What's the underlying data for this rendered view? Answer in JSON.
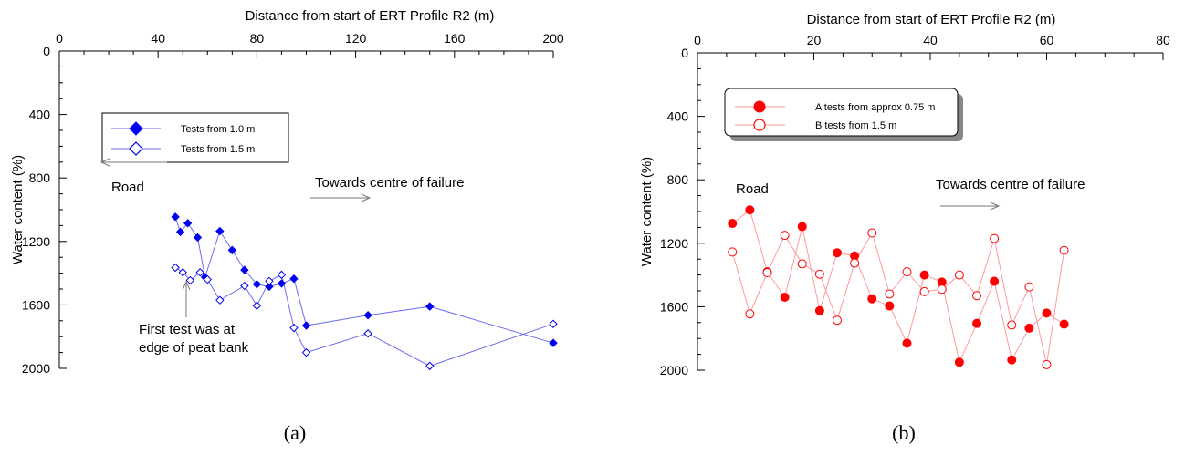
{
  "chart_data": [
    {
      "id": "a",
      "type": "scatter",
      "caption": "(a)",
      "xlabel": "Distance from start of ERT Profile R2 (m)",
      "ylabel": "Water content (%)",
      "xlim": [
        0,
        200
      ],
      "ylim": [
        2000,
        0
      ],
      "x_axis_position": "top",
      "y_inverted": true,
      "x_ticks": [
        "0",
        "40",
        "80",
        "120",
        "160",
        "200"
      ],
      "x_tick_values": [
        0,
        40,
        80,
        120,
        160,
        200
      ],
      "y_ticks": [
        "0",
        "400",
        "800",
        "1200",
        "1600",
        "2000"
      ],
      "y_tick_values": [
        0,
        400,
        800,
        1200,
        1600,
        2000
      ],
      "grid": false,
      "legend_position": "top-left",
      "series": [
        {
          "name": "Tests from 1.0 m",
          "marker": "filled-diamond",
          "color": "#0000ee",
          "line_color": "#6b6bef",
          "x": [
            47,
            49,
            52,
            56,
            59,
            65,
            70,
            75,
            80,
            85,
            90,
            95,
            100,
            125,
            150,
            200
          ],
          "y": [
            1045,
            1140,
            1085,
            1175,
            1425,
            1135,
            1255,
            1380,
            1470,
            1485,
            1465,
            1435,
            1730,
            1665,
            1610,
            1840
          ]
        },
        {
          "name": "Tests from 1.5 m",
          "marker": "open-diamond",
          "color": "#0000ee",
          "line_color": "#6b6bef",
          "x": [
            47,
            50,
            53,
            57,
            60,
            65,
            75,
            80,
            85,
            90,
            95,
            100,
            125,
            150,
            200
          ],
          "y": [
            1365,
            1395,
            1445,
            1395,
            1440,
            1570,
            1480,
            1605,
            1450,
            1410,
            1745,
            1900,
            1780,
            1985,
            1720
          ]
        }
      ],
      "annotations": [
        {
          "id": "road",
          "text": "Road",
          "arrow": "left"
        },
        {
          "id": "towards",
          "text": "Towards centre of failure",
          "arrow": "right"
        },
        {
          "id": "first1",
          "text": "First test was at"
        },
        {
          "id": "first2",
          "text": "edge of peat  bank",
          "arrow": "up"
        }
      ]
    },
    {
      "id": "b",
      "type": "scatter",
      "caption": "(b)",
      "xlabel": "Distance from start of ERT Profile R2 (m)",
      "ylabel": "Water content (%)",
      "xlim": [
        0,
        80
      ],
      "ylim": [
        2000,
        0
      ],
      "x_axis_position": "top",
      "y_inverted": true,
      "x_ticks": [
        "0",
        "20",
        "40",
        "60",
        "80"
      ],
      "x_tick_values": [
        0,
        20,
        40,
        60,
        80
      ],
      "y_ticks": [
        "0",
        "400",
        "800",
        "1200",
        "1600",
        "2000"
      ],
      "y_tick_values": [
        0,
        400,
        800,
        1200,
        1600,
        2000
      ],
      "grid": false,
      "legend_position": "top-left",
      "series": [
        {
          "name": "A tests from approx 0.75 m",
          "marker": "filled-circle",
          "color": "#ff0000",
          "line_color": "#ff9a9a",
          "x": [
            6,
            9,
            12,
            15,
            18,
            21,
            24,
            27,
            30,
            33,
            36,
            39,
            42,
            45,
            48,
            51,
            54,
            57,
            60,
            63
          ],
          "y": [
            1075,
            990,
            1380,
            1540,
            1095,
            1625,
            1260,
            1280,
            1550,
            1595,
            1830,
            1400,
            1445,
            1950,
            1705,
            1440,
            1935,
            1735,
            1640,
            1710
          ]
        },
        {
          "name": "B tests from 1.5 m",
          "marker": "open-circle",
          "color": "#ff0000",
          "line_color": "#ff9a9a",
          "x": [
            6,
            9,
            12,
            15,
            18,
            21,
            24,
            27,
            30,
            33,
            36,
            39,
            42,
            45,
            48,
            51,
            54,
            57,
            60,
            63
          ],
          "y": [
            1255,
            1645,
            1385,
            1150,
            1330,
            1395,
            1685,
            1325,
            1135,
            1520,
            1380,
            1505,
            1490,
            1400,
            1530,
            1170,
            1715,
            1475,
            1965,
            1245
          ]
        }
      ],
      "annotations": [
        {
          "id": "road",
          "text": "Road"
        },
        {
          "id": "towards",
          "text": "Towards centre of failure",
          "arrow": "right"
        }
      ]
    }
  ]
}
